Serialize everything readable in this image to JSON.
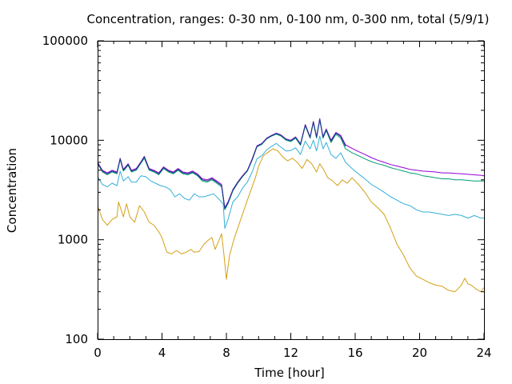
{
  "chart_data": {
    "type": "line",
    "title": "Concentration, ranges: 0-30 nm, 0-100 nm, 0-300 nm, total (5/9/1)",
    "xlabel": "Time [hour]",
    "ylabel": "Concentration",
    "xlim": [
      0,
      24
    ],
    "ylim": [
      100,
      100000
    ],
    "yscale": "log",
    "x_ticks": [
      0,
      4,
      8,
      12,
      16,
      20,
      24
    ],
    "x_tick_labels": [
      "0",
      "4",
      "8",
      "12",
      "16",
      "20",
      "24"
    ],
    "y_ticks": [
      100,
      1000,
      10000,
      100000
    ],
    "y_tick_labels": [
      "100",
      "1000",
      "10000",
      "100000"
    ],
    "grid": false,
    "legend": "none",
    "series": [
      {
        "color": "#d4a017",
        "x": [
          0,
          0.3,
          0.6,
          0.9,
          1.2,
          1.3,
          1.6,
          1.8,
          2.0,
          2.3,
          2.6,
          2.9,
          3.2,
          3.5,
          3.8,
          4.0,
          4.3,
          4.6,
          4.9,
          5.2,
          5.5,
          5.8,
          6.0,
          6.3,
          6.6,
          6.9,
          7.1,
          7.3,
          7.5,
          7.7,
          7.85,
          8.0,
          8.2,
          8.5,
          8.8,
          9.0,
          9.3,
          9.6,
          9.8,
          10.0,
          10.3,
          10.6,
          10.9,
          11.2,
          11.5,
          11.8,
          12.1,
          12.4,
          12.7,
          13.0,
          13.3,
          13.6,
          13.8,
          14.0,
          14.3,
          14.6,
          14.9,
          15.2,
          15.5,
          15.8,
          16.2,
          16.6,
          17.0,
          17.4,
          17.8,
          18.2,
          18.6,
          19.0,
          19.4,
          19.8,
          20.2,
          20.6,
          21.0,
          21.4,
          21.8,
          22.2,
          22.6,
          22.8,
          23.0,
          23.2,
          23.5,
          23.8,
          24.0
        ],
        "values": [
          2200,
          1600,
          1400,
          1600,
          1700,
          2400,
          1700,
          2300,
          1700,
          1500,
          2200,
          1900,
          1500,
          1400,
          1200,
          1050,
          750,
          720,
          780,
          720,
          750,
          800,
          750,
          760,
          900,
          1000,
          1050,
          800,
          950,
          1150,
          700,
          400,
          700,
          1050,
          1450,
          1800,
          2500,
          3400,
          4200,
          5500,
          7000,
          7600,
          8200,
          7800,
          6800,
          6200,
          6600,
          6000,
          5200,
          6400,
          5800,
          4800,
          5800,
          5200,
          4200,
          3900,
          3500,
          4000,
          3700,
          4200,
          3600,
          3000,
          2400,
          2100,
          1800,
          1300,
          900,
          700,
          520,
          430,
          400,
          370,
          350,
          340,
          310,
          300,
          350,
          410,
          360,
          350,
          320,
          300,
          330
        ]
      },
      {
        "color": "#35b0d8",
        "x": [
          0,
          0.3,
          0.6,
          0.9,
          1.2,
          1.4,
          1.6,
          1.9,
          2.1,
          2.4,
          2.7,
          3.0,
          3.3,
          3.6,
          3.9,
          4.2,
          4.5,
          4.8,
          5.1,
          5.4,
          5.7,
          6.0,
          6.3,
          6.6,
          6.9,
          7.2,
          7.5,
          7.8,
          7.9,
          8.1,
          8.4,
          8.7,
          9.0,
          9.3,
          9.6,
          9.9,
          10.2,
          10.5,
          10.8,
          11.1,
          11.4,
          11.7,
          12.0,
          12.3,
          12.6,
          12.9,
          13.2,
          13.4,
          13.6,
          13.8,
          14.0,
          14.2,
          14.5,
          14.8,
          15.1,
          15.4,
          15.8,
          16.2,
          16.6,
          17.0,
          17.4,
          17.8,
          18.2,
          18.6,
          19.0,
          19.4,
          19.8,
          20.2,
          20.6,
          21.0,
          21.4,
          21.8,
          22.2,
          22.6,
          23.0,
          23.4,
          23.8,
          24.0
        ],
        "values": [
          4300,
          3600,
          3400,
          3700,
          3500,
          4900,
          3900,
          4300,
          3800,
          3800,
          4400,
          4300,
          3900,
          3700,
          3500,
          3400,
          3200,
          2700,
          2900,
          2600,
          2500,
          2900,
          2700,
          2700,
          2800,
          2900,
          2600,
          2300,
          1300,
          1600,
          2400,
          2700,
          3300,
          3800,
          4800,
          6500,
          7000,
          8000,
          8700,
          9300,
          8500,
          7800,
          7900,
          8400,
          7200,
          9800,
          8200,
          10000,
          7800,
          11000,
          8200,
          9500,
          7200,
          6600,
          7500,
          6000,
          5200,
          4600,
          4100,
          3600,
          3300,
          3000,
          2700,
          2500,
          2300,
          2200,
          2000,
          1900,
          1900,
          1850,
          1800,
          1750,
          1800,
          1750,
          1650,
          1750,
          1650,
          1650
        ]
      },
      {
        "color": "#009e73",
        "x": [
          0,
          0.3,
          0.6,
          0.9,
          1.2,
          1.4,
          1.6,
          1.9,
          2.1,
          2.4,
          2.7,
          2.9,
          3.2,
          3.5,
          3.8,
          4.1,
          4.4,
          4.7,
          5.0,
          5.3,
          5.6,
          5.9,
          6.2,
          6.5,
          6.8,
          7.1,
          7.4,
          7.7,
          7.9,
          8.1,
          8.4,
          8.7,
          9.0,
          9.3,
          9.6,
          9.9,
          10.2,
          10.5,
          10.8,
          11.1,
          11.4,
          11.7,
          12.0,
          12.3,
          12.6,
          12.9,
          13.2,
          13.4,
          13.6,
          13.8,
          14.0,
          14.2,
          14.5,
          14.8,
          15.1,
          15.4,
          15.8,
          16.2,
          16.6,
          17.0,
          17.4,
          17.8,
          18.2,
          18.6,
          19.0,
          19.4,
          19.8,
          20.2,
          20.6,
          21.0,
          21.4,
          21.8,
          22.2,
          22.6,
          23.0,
          23.4,
          23.8,
          24.0
        ],
        "values": [
          5800,
          4800,
          4500,
          4800,
          4600,
          6400,
          4900,
          5600,
          4800,
          5000,
          5900,
          6600,
          5000,
          4800,
          4500,
          5200,
          4800,
          4600,
          5000,
          4600,
          4500,
          4700,
          4400,
          3900,
          3800,
          4000,
          3700,
          3400,
          2000,
          2300,
          3100,
          3700,
          4300,
          4900,
          6300,
          8600,
          9100,
          10300,
          11000,
          11500,
          11000,
          10000,
          9700,
          10500,
          8900,
          14000,
          10500,
          15000,
          10500,
          16000,
          10500,
          12500,
          9500,
          11500,
          10500,
          8200,
          7500,
          7000,
          6500,
          6100,
          5800,
          5600,
          5300,
          5100,
          4900,
          4700,
          4600,
          4400,
          4300,
          4200,
          4100,
          4100,
          4000,
          4000,
          3950,
          3900,
          3900,
          3900
        ]
      },
      {
        "color": "#9400d3",
        "x": [
          0,
          0.3,
          0.6,
          0.9,
          1.2,
          1.4,
          1.6,
          1.9,
          2.1,
          2.4,
          2.7,
          2.9,
          3.2,
          3.5,
          3.8,
          4.1,
          4.4,
          4.7,
          5.0,
          5.3,
          5.6,
          5.9,
          6.2,
          6.5,
          6.8,
          7.1,
          7.4,
          7.7,
          7.9,
          8.1,
          8.4,
          8.7,
          9.0,
          9.3,
          9.6,
          9.9,
          10.2,
          10.5,
          10.8,
          11.1,
          11.4,
          11.7,
          12.0,
          12.3,
          12.6,
          12.9,
          13.2,
          13.4,
          13.6,
          13.8,
          14.0,
          14.2,
          14.5,
          14.8,
          15.1,
          15.4,
          15.8,
          16.2,
          16.6,
          17.0,
          17.4,
          17.8,
          18.2,
          18.6,
          19.0,
          19.4,
          19.8,
          20.2,
          20.6,
          21.0,
          21.4,
          21.8,
          22.2,
          22.6,
          23.0,
          23.4,
          23.8,
          24.0
        ],
        "values": [
          6000,
          5000,
          4700,
          5000,
          4800,
          6600,
          5100,
          5800,
          5000,
          5200,
          6100,
          6900,
          5200,
          5000,
          4700,
          5400,
          5000,
          4800,
          5200,
          4800,
          4700,
          4900,
          4600,
          4100,
          4000,
          4200,
          3900,
          3600,
          2100,
          2400,
          3200,
          3800,
          4400,
          5000,
          6500,
          8800,
          9300,
          10500,
          11200,
          11800,
          11300,
          10300,
          10000,
          10800,
          9200,
          14400,
          10800,
          15500,
          10900,
          16500,
          10900,
          13000,
          10000,
          12000,
          11200,
          9000,
          8300,
          7700,
          7200,
          6700,
          6300,
          6000,
          5700,
          5500,
          5300,
          5100,
          5000,
          4900,
          4850,
          4800,
          4700,
          4700,
          4650,
          4600,
          4550,
          4500,
          4450,
          4400
        ]
      },
      {
        "color": "#1a3a8a",
        "x": [
          0,
          0.3,
          0.6,
          0.9,
          1.2,
          1.4,
          1.6,
          1.9,
          2.1,
          2.4,
          2.7,
          2.9,
          3.2,
          3.5,
          3.8,
          4.1,
          4.4,
          4.7,
          5.0,
          5.3,
          5.6,
          5.9,
          6.2,
          6.5,
          6.8,
          7.1,
          7.4,
          7.7,
          7.9,
          8.1,
          8.4,
          8.7,
          9.0,
          9.3,
          9.6,
          9.9,
          10.2,
          10.5,
          10.8,
          11.1,
          11.4,
          11.7,
          12.0,
          12.3,
          12.6,
          12.9,
          13.2,
          13.4,
          13.6,
          13.8,
          14.0,
          14.2,
          14.5,
          14.8,
          15.1,
          15.4
        ],
        "values": [
          5900,
          4900,
          4600,
          4900,
          4700,
          6500,
          5000,
          5700,
          4900,
          5100,
          6000,
          6800,
          5100,
          4900,
          4600,
          5300,
          4900,
          4700,
          5100,
          4700,
          4600,
          4800,
          4500,
          4000,
          3900,
          4100,
          3800,
          3500,
          2050,
          2350,
          3150,
          3750,
          4350,
          4950,
          6400,
          8700,
          9200,
          10400,
          11100,
          11700,
          11200,
          10200,
          9900,
          10700,
          9100,
          14200,
          10700,
          15300,
          10700,
          16300,
          10700,
          12800,
          9800,
          11800,
          10900,
          8700
        ]
      }
    ]
  }
}
